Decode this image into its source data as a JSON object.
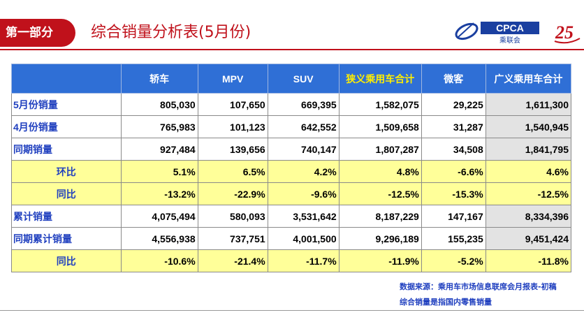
{
  "header": {
    "section_tag": "第一部分",
    "title": "综合销量分析表(5月份)",
    "logo_text": "CPCA",
    "logo_subtext": "乘联会",
    "anniv_text": "25"
  },
  "table": {
    "columns": [
      "轿车",
      "MPV",
      "SUV",
      "狭义乘用车合计",
      "微客",
      "广义乘用车合计"
    ],
    "rows": [
      {
        "label": "5月份销量",
        "values": [
          "805,030",
          "107,650",
          "669,395",
          "1,582,075",
          "29,225",
          "1,611,300"
        ]
      },
      {
        "label": "4月份销量",
        "values": [
          "765,983",
          "101,123",
          "642,552",
          "1,509,658",
          "31,287",
          "1,540,945"
        ]
      },
      {
        "label": "同期销量",
        "values": [
          "927,484",
          "139,656",
          "740,147",
          "1,807,287",
          "34,508",
          "1,841,795"
        ]
      },
      {
        "label": "环比",
        "values": [
          "5.1%",
          "6.5%",
          "4.2%",
          "4.8%",
          "-6.6%",
          "4.6%"
        ]
      },
      {
        "label": "同比",
        "values": [
          "-13.2%",
          "-22.9%",
          "-9.6%",
          "-12.5%",
          "-15.3%",
          "-12.5%"
        ]
      },
      {
        "label": "累计销量",
        "values": [
          "4,075,494",
          "580,093",
          "3,531,642",
          "8,187,229",
          "147,167",
          "8,334,396"
        ]
      },
      {
        "label": "同期累计销量",
        "values": [
          "4,556,938",
          "737,751",
          "4,001,500",
          "9,296,189",
          "155,235",
          "9,451,424"
        ]
      },
      {
        "label": "同比",
        "values": [
          "-10.6%",
          "-21.4%",
          "-11.7%",
          "-11.9%",
          "-5.2%",
          "-11.8%"
        ]
      }
    ]
  },
  "footer": {
    "source": "数据来源：乘用车市场信息联席会月报表-初稿",
    "note": "综合销量是指国内零售销量"
  },
  "colors": {
    "brand_red": "#c0111b",
    "header_blue": "#2f6fd6",
    "highlight_yellow": "#ffff99",
    "label_blue": "#1f3fbf"
  }
}
